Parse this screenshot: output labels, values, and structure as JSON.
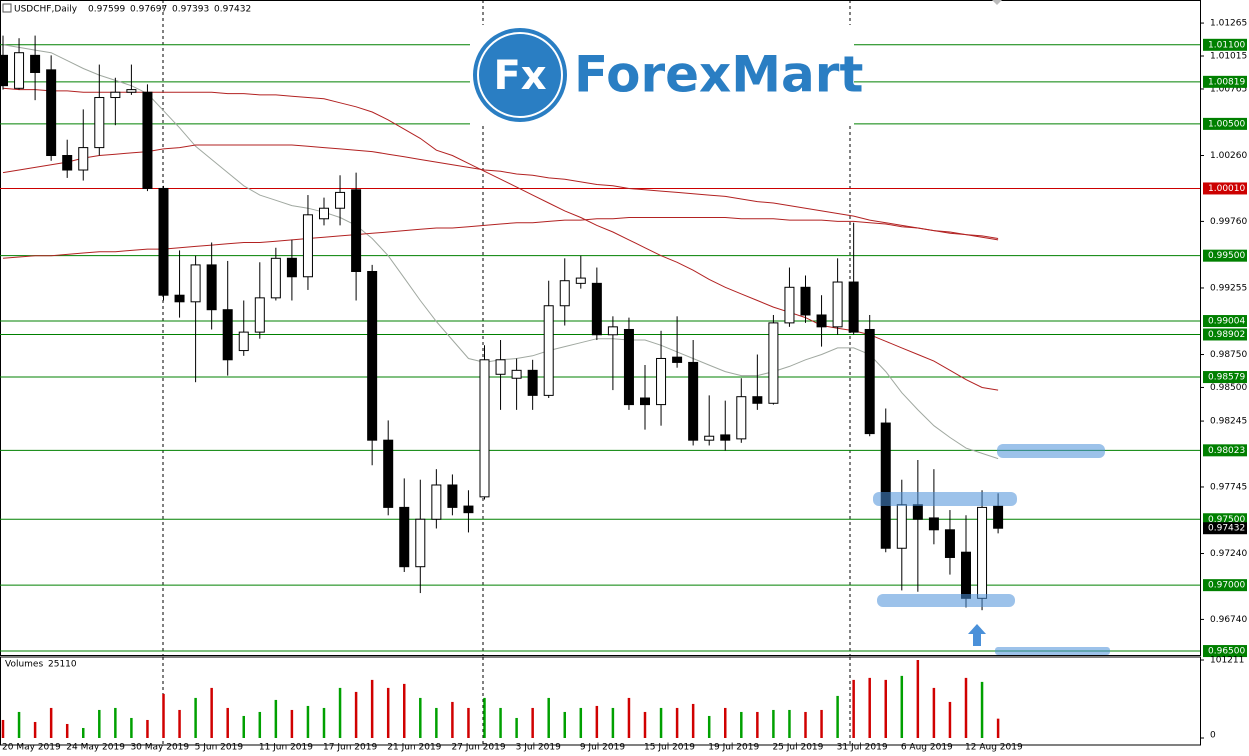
{
  "chart_data": [
    {
      "type": "candlestick",
      "title": "USDCHF,Daily",
      "categories": [
        null,
        "20 May 2019",
        null,
        null,
        null,
        "24 May 2019",
        null,
        null,
        null,
        "30 May 2019",
        null,
        null,
        null,
        "5 Jun 2019",
        null,
        null,
        null,
        "11 Jun 2019",
        null,
        null,
        null,
        "17 Jun 2019",
        null,
        null,
        null,
        "21 Jun 2019",
        null,
        null,
        null,
        "27 Jun 2019",
        null,
        null,
        null,
        "3 Jul 2019",
        null,
        null,
        null,
        "9 Jul 2019",
        null,
        null,
        null,
        "15 Jul 2019",
        null,
        null,
        null,
        "19 Jul 2019",
        null,
        null,
        null,
        "25 Jul 2019",
        null,
        null,
        null,
        "31 Jul 2019",
        null,
        null,
        null,
        "6 Aug 2019",
        null,
        null,
        null,
        "12 Aug 2019",
        null
      ],
      "open": [
        1.0102,
        1.0077,
        1.0102,
        1.0091,
        1.0026,
        1.0015,
        1.0032,
        1.007,
        1.0074,
        1.0074,
        1.0001,
        0.992,
        0.9915,
        0.9943,
        0.9909,
        0.9878,
        0.9892,
        0.9918,
        0.9948,
        0.9934,
        0.9978,
        0.9986,
        1.0,
        0.9938,
        0.981,
        0.9759,
        0.9714,
        0.975,
        0.9776,
        0.976,
        0.9767,
        0.986,
        0.9857,
        0.9863,
        0.9844,
        0.9912,
        0.9929,
        0.9929,
        0.989,
        0.9894,
        0.9842,
        0.9837,
        0.9873,
        0.9869,
        0.981,
        0.9814,
        0.9811,
        0.9843,
        0.9838,
        0.9899,
        0.9926,
        0.9905,
        0.9896,
        0.993,
        0.9894,
        0.9823,
        0.9728,
        0.9761,
        0.9751,
        0.9742,
        0.9725,
        0.969,
        0.97599
      ],
      "high": [
        1.0117,
        1.0115,
        1.0117,
        1.0102,
        1.0038,
        1.0061,
        1.0095,
        1.0085,
        1.0095,
        1.008,
        1.0003,
        0.9954,
        0.995,
        0.996,
        0.9946,
        0.9916,
        0.9945,
        0.9956,
        0.9962,
        0.9996,
        0.9994,
        1.0011,
        1.0013,
        0.9943,
        0.9825,
        0.9781,
        0.978,
        0.9788,
        0.9784,
        0.9772,
        0.9882,
        0.9886,
        0.9872,
        0.9871,
        0.9931,
        0.9948,
        0.995,
        0.9941,
        0.9904,
        0.9903,
        0.9867,
        0.9893,
        0.9904,
        0.9886,
        0.9844,
        0.984,
        0.9857,
        0.9875,
        0.9905,
        0.9941,
        0.9935,
        0.992,
        0.9948,
        0.9975,
        0.9905,
        0.9834,
        0.978,
        0.9795,
        0.9788,
        0.9757,
        0.9753,
        0.9772,
        0.97697
      ],
      "low": [
        1.0076,
        1.0076,
        1.0068,
        1.0022,
        1.0009,
        1.0007,
        1.0026,
        1.0049,
        1.0072,
        0.9999,
        0.9916,
        0.9903,
        0.9854,
        0.9894,
        0.9859,
        0.9874,
        0.9887,
        0.9916,
        0.9916,
        0.9924,
        0.9973,
        0.9973,
        0.9916,
        0.9791,
        0.9753,
        0.971,
        0.9694,
        0.9743,
        0.9753,
        0.974,
        0.9765,
        0.9833,
        0.9833,
        0.9833,
        0.9842,
        0.9897,
        0.9925,
        0.9886,
        0.9848,
        0.9833,
        0.9818,
        0.9821,
        0.9865,
        0.9806,
        0.9806,
        0.9802,
        0.9808,
        0.9833,
        0.9837,
        0.9896,
        0.9899,
        0.9881,
        0.989,
        0.989,
        0.9813,
        0.9725,
        0.9696,
        0.9695,
        0.9731,
        0.9708,
        0.9683,
        0.9681,
        0.97393
      ],
      "close": [
        1.0079,
        1.0104,
        1.0089,
        1.0026,
        1.0015,
        1.0032,
        1.007,
        1.0074,
        1.0076,
        1.0001,
        0.992,
        0.9915,
        0.9943,
        0.9909,
        0.9871,
        0.9892,
        0.9918,
        0.9948,
        0.9934,
        0.9981,
        0.9986,
        0.9998,
        0.9938,
        0.981,
        0.9759,
        0.9714,
        0.975,
        0.9776,
        0.9759,
        0.9755,
        0.9871,
        0.9871,
        0.9863,
        0.9844,
        0.9912,
        0.9931,
        0.9933,
        0.989,
        0.9896,
        0.9837,
        0.9837,
        0.9872,
        0.9869,
        0.981,
        0.9813,
        0.981,
        0.9843,
        0.9838,
        0.9899,
        0.9926,
        0.9905,
        0.9896,
        0.993,
        0.9892,
        0.9815,
        0.9728,
        0.9761,
        0.975,
        0.9742,
        0.9721,
        0.969,
        0.9759,
        0.97432
      ],
      "up_color": "#ffffff",
      "down_color": "#000000",
      "series": [
        {
          "color": "#a0a8a0",
          "values": [
            1.011,
            1.0108,
            1.0106,
            1.0104,
            1.0098,
            1.0092,
            1.0087,
            1.0083,
            1.0079,
            1.0073,
            1.006,
            1.0047,
            1.0033,
            1.0023,
            1.0013,
            1.0003,
            0.9996,
            0.9992,
            0.9988,
            0.9986,
            0.9983,
            0.9979,
            0.9973,
            0.9963,
            0.995,
            0.9933,
            0.9916,
            0.99,
            0.9886,
            0.9872,
            0.9869,
            0.9871,
            0.9872,
            0.9874,
            0.9878,
            0.9881,
            0.9884,
            0.9887,
            0.9887,
            0.9886,
            0.9886,
            0.9882,
            0.9877,
            0.9872,
            0.9867,
            0.9862,
            0.9859,
            0.9859,
            0.9862,
            0.9866,
            0.9871,
            0.9875,
            0.988,
            0.988,
            0.9875,
            0.9862,
            0.9846,
            0.9833,
            0.9821,
            0.9812,
            0.9804,
            0.98,
            0.9796
          ]
        },
        {
          "color": "#b22222",
          "values": [
            1.0077,
            1.0076,
            1.0076,
            1.0075,
            1.0075,
            1.0074,
            1.0074,
            1.0074,
            1.0074,
            1.0074,
            1.0074,
            1.0074,
            1.0074,
            1.0074,
            1.0073,
            1.0073,
            1.0072,
            1.0072,
            1.0071,
            1.007,
            1.0069,
            1.0066,
            1.0063,
            1.0059,
            1.0053,
            1.0046,
            1.0039,
            1.003,
            1.0026,
            1.002,
            1.0014,
            1.0008,
            1.0002,
            0.9996,
            0.999,
            0.9984,
            0.9979,
            0.9973,
            0.9968,
            0.9962,
            0.9956,
            0.995,
            0.9945,
            0.9939,
            0.9932,
            0.9926,
            0.9921,
            0.9916,
            0.9911,
            0.9907,
            0.9903,
            0.9897,
            0.9895,
            0.9893,
            0.989,
            0.9885,
            0.988,
            0.9875,
            0.987,
            0.9863,
            0.9856,
            0.985,
            0.9848
          ]
        },
        {
          "color": "#b22222",
          "values": [
            1.0013,
            1.0015,
            1.0017,
            1.0019,
            1.0021,
            1.0024,
            1.0026,
            1.0027,
            1.0028,
            1.0029,
            1.0031,
            1.0032,
            1.0034,
            1.0034,
            1.0034,
            1.0034,
            1.0034,
            1.0034,
            1.0034,
            1.0033,
            1.0032,
            1.0031,
            1.003,
            1.0029,
            1.0027,
            1.0025,
            1.0023,
            1.0021,
            1.0019,
            1.0017,
            1.0015,
            1.0014,
            1.0012,
            1.0011,
            1.0009,
            1.0008,
            1.0006,
            1.0004,
            1.0003,
            1.0001,
            1.0,
            0.9999,
            0.9998,
            0.9997,
            0.9996,
            0.9995,
            0.9993,
            0.9991,
            0.999,
            0.9988,
            0.9986,
            0.9984,
            0.9982,
            0.998,
            0.9977,
            0.9975,
            0.9973,
            0.9971,
            0.9969,
            0.9967,
            0.9966,
            0.9964,
            0.9962
          ]
        },
        {
          "color": "#b22222",
          "values": [
            0.9948,
            0.9949,
            0.995,
            0.995,
            0.9951,
            0.9952,
            0.9953,
            0.9953,
            0.9954,
            0.9955,
            0.9955,
            0.9956,
            0.9957,
            0.9958,
            0.9959,
            0.996,
            0.996,
            0.9961,
            0.9962,
            0.9963,
            0.9964,
            0.9965,
            0.9966,
            0.9967,
            0.9968,
            0.9969,
            0.997,
            0.9971,
            0.9971,
            0.9972,
            0.9973,
            0.9974,
            0.9975,
            0.9975,
            0.9976,
            0.9977,
            0.9977,
            0.9978,
            0.9978,
            0.9979,
            0.9979,
            0.9979,
            0.9979,
            0.9979,
            0.9979,
            0.9979,
            0.9978,
            0.9978,
            0.9978,
            0.9977,
            0.9977,
            0.9977,
            0.9976,
            0.9976,
            0.9975,
            0.9974,
            0.9972,
            0.9971,
            0.9969,
            0.9968,
            0.9966,
            0.9965,
            0.9963
          ]
        }
      ],
      "ylim": [
        0.9647,
        1.0144
      ],
      "yticks": [
        1.01265,
        1.01015,
        1.00765,
        {
          "value": 1.0026,
          "label": "1.00260"
        },
        {
          "value": 0.9976,
          "label": "0.99760"
        },
        0.99255,
        {
          "value": 0.9875,
          "label": "0.98750"
        },
        {
          "value": 0.985,
          "label": "0.98500"
        },
        0.98245,
        0.97745,
        {
          "value": 0.9724,
          "label": "0.97240"
        },
        {
          "value": 0.9674,
          "label": "0.96740"
        }
      ],
      "levels": [
        {
          "value": 1.011,
          "label": "1.01100",
          "color": "#008000"
        },
        {
          "value": 1.00819,
          "label": "1.00819",
          "color": "#008000"
        },
        {
          "value": 1.005,
          "label": "1.00500",
          "color": "#008000"
        },
        {
          "value": 1.0001,
          "label": "1.00010",
          "color": "#cc0000"
        },
        {
          "value": 0.995,
          "label": "0.99500",
          "color": "#008000"
        },
        {
          "value": 0.99004,
          "label": "0.99004",
          "color": "#008000"
        },
        {
          "value": 0.98902,
          "label": "0.98902",
          "color": "#008000"
        },
        {
          "value": 0.98579,
          "label": "0.98579",
          "color": "#008000"
        },
        {
          "value": 0.98023,
          "label": "0.98023",
          "color": "#008000"
        },
        {
          "value": 0.975,
          "label": "0.97500",
          "color": "#008000"
        },
        {
          "value": 0.97,
          "label": "0.97000",
          "color": "#008000"
        },
        {
          "value": 0.965,
          "label": "0.96500",
          "color": "#008000"
        }
      ],
      "watermark": {
        "logo": "Fx",
        "brand": "ForexMart"
      }
    },
    {
      "type": "bar",
      "title": "Volumes",
      "values": [
        23400,
        33800,
        20800,
        39000,
        18200,
        13000,
        36400,
        39000,
        26000,
        23400,
        57200,
        36400,
        52000,
        65000,
        39000,
        28600,
        33800,
        49400,
        36400,
        41600,
        39000,
        65000,
        59800,
        75400,
        65000,
        70200,
        52000,
        39000,
        46800,
        39000,
        52000,
        39000,
        26000,
        39000,
        52000,
        33800,
        39000,
        41600,
        39000,
        52000,
        33800,
        39000,
        39000,
        44200,
        28600,
        39000,
        33800,
        33800,
        36400,
        36400,
        33800,
        36400,
        54600,
        75400,
        78000,
        75400,
        80600,
        101211,
        65000,
        46800,
        78000,
        72800,
        25110
      ],
      "up_color": "#00a000",
      "down_color": "#d00000",
      "ylim": [
        0,
        105100
      ],
      "yticks": [
        0,
        101211
      ]
    }
  ]
}
